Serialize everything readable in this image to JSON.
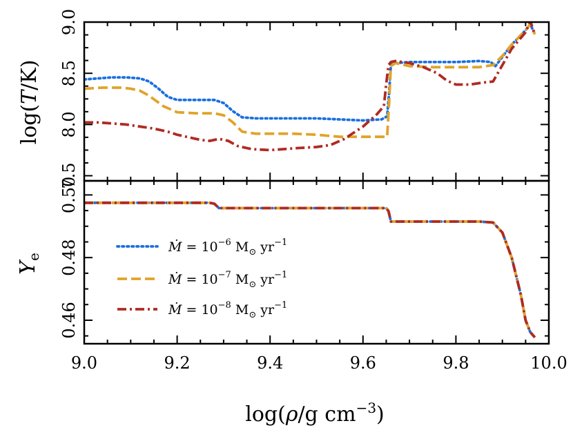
{
  "chart_data": [
    {
      "type": "line",
      "title": "",
      "xlabel": "log(ρ/g cm⁻³)",
      "ylabel": "log(T/K)",
      "xlim": [
        9.0,
        10.0
      ],
      "ylim": [
        7.45,
        9.0
      ],
      "x_ticks": [
        "9.0",
        "9.2",
        "9.4",
        "9.6",
        "9.8",
        "10.0"
      ],
      "y_ticks": [
        "7.5",
        "8.0",
        "8.5",
        "9.0"
      ],
      "series": [
        {
          "name": "Ṁ = 10⁻⁶ M☉ yr⁻¹",
          "color": "#1a6fe0",
          "dash": "dotted",
          "x": [
            9.0,
            9.03,
            9.06,
            9.09,
            9.12,
            9.14,
            9.16,
            9.18,
            9.2,
            9.23,
            9.26,
            9.28,
            9.3,
            9.32,
            9.34,
            9.37,
            9.4,
            9.45,
            9.5,
            9.55,
            9.6,
            9.64,
            9.652,
            9.656,
            9.66,
            9.67,
            9.7,
            9.75,
            9.8,
            9.85,
            9.875,
            9.885,
            9.9,
            9.92,
            9.95,
            9.96,
            9.97
          ],
          "y": [
            8.44,
            8.45,
            8.46,
            8.46,
            8.45,
            8.42,
            8.35,
            8.27,
            8.24,
            8.24,
            8.24,
            8.24,
            8.21,
            8.13,
            8.07,
            8.06,
            8.06,
            8.06,
            8.06,
            8.05,
            8.04,
            8.05,
            8.08,
            8.3,
            8.58,
            8.6,
            8.61,
            8.61,
            8.61,
            8.62,
            8.61,
            8.57,
            8.66,
            8.78,
            8.92,
            8.98,
            8.88
          ]
        },
        {
          "name": "Ṁ = 10⁻⁷ M☉ yr⁻¹",
          "color": "#e0a32a",
          "dash": "dashed",
          "x": [
            9.0,
            9.04,
            9.08,
            9.1,
            9.12,
            9.14,
            9.17,
            9.2,
            9.24,
            9.28,
            9.3,
            9.32,
            9.34,
            9.37,
            9.4,
            9.45,
            9.5,
            9.55,
            9.6,
            9.64,
            9.652,
            9.656,
            9.66,
            9.67,
            9.7,
            9.75,
            9.8,
            9.85,
            9.88,
            9.9,
            9.92,
            9.95,
            9.96,
            9.97
          ],
          "y": [
            8.35,
            8.36,
            8.36,
            8.35,
            8.33,
            8.28,
            8.18,
            8.12,
            8.11,
            8.11,
            8.09,
            8.02,
            7.93,
            7.91,
            7.91,
            7.91,
            7.9,
            7.88,
            7.88,
            7.88,
            7.88,
            8.2,
            8.57,
            8.6,
            8.57,
            8.56,
            8.56,
            8.56,
            8.58,
            8.67,
            8.78,
            8.92,
            8.98,
            8.88
          ]
        },
        {
          "name": "Ṁ = 10⁻⁸ M☉ yr⁻¹",
          "color": "#b02a22",
          "dash": "dashdot",
          "x": [
            9.0,
            9.03,
            9.06,
            9.09,
            9.12,
            9.15,
            9.18,
            9.2,
            9.22,
            9.25,
            9.27,
            9.29,
            9.31,
            9.33,
            9.36,
            9.4,
            9.43,
            9.46,
            9.5,
            9.53,
            9.56,
            9.58,
            9.6,
            9.63,
            9.645,
            9.65,
            9.655,
            9.66,
            9.67,
            9.7,
            9.73,
            9.76,
            9.78,
            9.8,
            9.83,
            9.86,
            9.88,
            9.9,
            9.92,
            9.95,
            9.96,
            9.97
          ],
          "y": [
            8.02,
            8.02,
            8.01,
            8.0,
            7.98,
            7.96,
            7.93,
            7.9,
            7.88,
            7.85,
            7.84,
            7.86,
            7.84,
            7.79,
            7.76,
            7.75,
            7.76,
            7.77,
            7.78,
            7.8,
            7.86,
            7.92,
            7.98,
            8.1,
            8.18,
            8.4,
            8.58,
            8.61,
            8.62,
            8.6,
            8.56,
            8.5,
            8.43,
            8.39,
            8.39,
            8.41,
            8.42,
            8.58,
            8.74,
            8.9,
            9.01,
            8.88
          ]
        }
      ]
    },
    {
      "type": "line",
      "title": "",
      "xlabel": "log(ρ/g cm⁻³)",
      "ylabel": "Ye",
      "xlim": [
        9.0,
        10.0
      ],
      "ylim": [
        0.4525,
        0.5045
      ],
      "x_ticks": [
        "9.0",
        "9.2",
        "9.4",
        "9.6",
        "9.8",
        "10.0"
      ],
      "y_ticks": [
        "0.46",
        "0.48",
        "0.50"
      ],
      "series": [
        {
          "name": "Ṁ = 10⁻⁶ M☉ yr⁻¹",
          "color": "#1a6fe0",
          "dash": "dotted",
          "x": [
            9.0,
            9.27,
            9.28,
            9.29,
            9.65,
            9.655,
            9.66,
            9.85,
            9.88,
            9.9,
            9.92,
            9.94,
            9.95,
            9.96,
            9.97
          ],
          "y": [
            0.4975,
            0.4975,
            0.4972,
            0.4958,
            0.4958,
            0.4948,
            0.4915,
            0.4915,
            0.4912,
            0.488,
            0.48,
            0.468,
            0.46,
            0.4562,
            0.4545
          ]
        },
        {
          "name": "Ṁ = 10⁻⁷ M☉ yr⁻¹",
          "color": "#e0a32a",
          "dash": "dashed",
          "x": [
            9.0,
            9.27,
            9.28,
            9.29,
            9.65,
            9.655,
            9.66,
            9.85,
            9.88,
            9.9,
            9.92,
            9.94,
            9.95,
            9.96,
            9.97
          ],
          "y": [
            0.4975,
            0.4975,
            0.4972,
            0.4958,
            0.4958,
            0.4948,
            0.4915,
            0.4915,
            0.4912,
            0.488,
            0.48,
            0.468,
            0.46,
            0.4562,
            0.4545
          ]
        },
        {
          "name": "Ṁ = 10⁻⁸ M☉ yr⁻¹",
          "color": "#b02a22",
          "dash": "dashdot",
          "x": [
            9.0,
            9.27,
            9.28,
            9.29,
            9.65,
            9.655,
            9.66,
            9.85,
            9.88,
            9.9,
            9.92,
            9.94,
            9.95,
            9.96,
            9.97
          ],
          "y": [
            0.4975,
            0.4975,
            0.4972,
            0.4958,
            0.4958,
            0.4948,
            0.4915,
            0.4915,
            0.4912,
            0.488,
            0.48,
            0.468,
            0.46,
            0.4562,
            0.4545
          ]
        }
      ]
    }
  ],
  "legend": {
    "placement": "lower-left of bottom panel",
    "entries": [
      {
        "prefix": "Ṁ",
        "eq": " = 10",
        "exp": "−6",
        "unit": " M",
        "sub": "⊙",
        "yr": " yr",
        "yrexp": "−1"
      },
      {
        "prefix": "Ṁ",
        "eq": " = 10",
        "exp": "−7",
        "unit": " M",
        "sub": "⊙",
        "yr": " yr",
        "yrexp": "−1"
      },
      {
        "prefix": "Ṁ",
        "eq": " = 10",
        "exp": "−8",
        "unit": " M",
        "sub": "⊙",
        "yr": " yr",
        "yrexp": "−1"
      }
    ]
  },
  "labels": {
    "top_ylabel": {
      "pre": "log(",
      "var": "T",
      "post": "/K)"
    },
    "bottom_ylabel": {
      "var": "Y",
      "sub": "e"
    },
    "xlabel": {
      "pre": "log(",
      "var": "ρ",
      "post": "/g cm",
      "exp": "−3",
      "close": ")"
    }
  }
}
